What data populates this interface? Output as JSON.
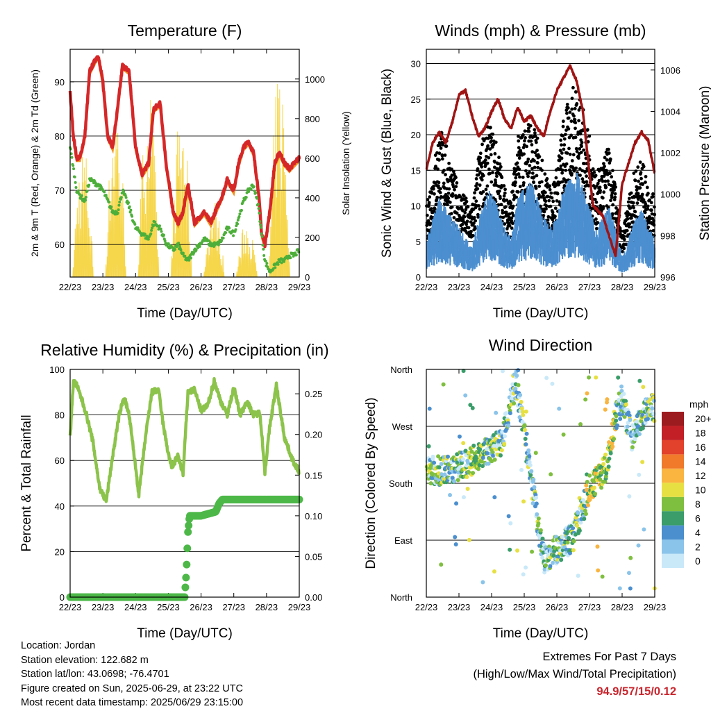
{
  "x_ticks": [
    "22/23",
    "23/23",
    "24/23",
    "25/23",
    "26/23",
    "27/23",
    "28/23",
    "29/23"
  ],
  "x_label": "Time (Day/UTC)",
  "colors": {
    "temp_red": "#d62728",
    "temp_orange": "#f39020",
    "dewpoint_green": "#4daf3a",
    "solar_yellow": "#f6d64a",
    "wind_blue": "#4c8fd0",
    "gust_black": "#000000",
    "pressure_maroon": "#a01414",
    "rh_green": "#8cc34b",
    "precip_green": "#4db848"
  },
  "chart_data": [
    {
      "id": "temperature",
      "type": "line",
      "title": "Temperature (F)",
      "xlabel": "Time (Day/UTC)",
      "ylabel": "2m & 9m T (Red, Orange) & 2m Td (Green)",
      "y2label": "Solar Insolation (Yellow)",
      "ylim": [
        54,
        96
      ],
      "yticks": [
        60,
        70,
        80,
        90
      ],
      "y2lim": [
        0,
        1150
      ],
      "y2ticks": [
        0,
        200,
        400,
        600,
        800,
        1000
      ],
      "x_days": [
        0,
        0.1,
        0.2,
        0.3,
        0.45,
        0.6,
        0.85,
        1.0,
        1.15,
        1.3,
        1.45,
        1.6,
        1.8,
        2.0,
        2.2,
        2.4,
        2.55,
        2.75,
        2.95,
        3.15,
        3.3,
        3.45,
        3.6,
        3.8,
        3.95,
        4.1,
        4.3,
        4.5,
        4.65,
        4.8,
        5.0,
        5.15,
        5.3,
        5.45,
        5.6,
        5.75,
        5.85,
        5.95,
        6.1,
        6.25,
        6.4,
        6.55,
        6.7,
        6.85,
        7.0
      ],
      "series": [
        {
          "name": "2m T",
          "values": [
            88,
            80,
            76,
            76,
            80,
            92,
            95,
            90,
            80,
            78,
            85,
            93,
            92,
            78,
            73,
            75,
            85,
            86,
            74,
            66,
            64,
            66,
            71,
            64,
            65,
            66,
            64,
            67,
            69,
            72,
            70,
            75,
            78,
            79,
            77,
            70,
            62,
            60,
            66,
            75,
            77,
            75,
            74,
            75,
            76
          ]
        },
        {
          "name": "Td",
          "values": [
            78,
            74,
            70,
            69,
            68,
            72,
            71,
            70,
            68,
            66,
            66,
            70,
            67,
            63,
            62,
            61,
            64,
            63,
            60,
            59,
            60,
            58,
            57,
            59,
            60,
            61,
            60,
            60,
            61,
            63,
            62,
            65,
            68,
            70,
            71,
            67,
            62,
            57,
            55,
            56,
            57,
            57,
            58,
            58,
            59
          ]
        }
      ],
      "solar": [
        {
          "day": 0,
          "peak": 700
        },
        {
          "day": 1,
          "peak": 950
        },
        {
          "day": 2,
          "peak": 1000
        },
        {
          "day": 3,
          "peak": 900
        },
        {
          "day": 4,
          "peak": 400
        },
        {
          "day": 5,
          "peak": 300
        },
        {
          "day": 6,
          "peak": 1100
        }
      ]
    },
    {
      "id": "winds",
      "type": "scatter+line",
      "title": "Winds (mph) & Pressure (mb)",
      "xlabel": "Time (Day/UTC)",
      "ylabel": "Sonic Wind & Gust (Blue, Black)",
      "y2label": "Station Pressure (Maroon)",
      "ylim": [
        0,
        32
      ],
      "yticks": [
        0,
        5,
        10,
        15,
        20,
        25,
        30
      ],
      "y2lim": [
        996,
        1007
      ],
      "y2ticks": [
        996,
        998,
        1000,
        1002,
        1004,
        1006
      ],
      "pressure": {
        "x_days": [
          0,
          0.2,
          0.4,
          0.6,
          0.8,
          1.0,
          1.2,
          1.4,
          1.6,
          1.8,
          2.0,
          2.2,
          2.4,
          2.6,
          2.8,
          3.0,
          3.2,
          3.4,
          3.6,
          3.8,
          4.0,
          4.2,
          4.4,
          4.6,
          4.8,
          5.0,
          5.1,
          5.25,
          5.4,
          5.6,
          5.8,
          6.0,
          6.2,
          6.4,
          6.6,
          6.8,
          7.0
        ],
        "values": [
          1001.2,
          1002.5,
          1003.0,
          1002.5,
          1003.5,
          1004.8,
          1005.0,
          1003.8,
          1002.8,
          1003.2,
          1004.0,
          1004.6,
          1003.6,
          1003.2,
          1004.2,
          1003.5,
          1003.8,
          1003.2,
          1002.8,
          1004.0,
          1005.0,
          1005.6,
          1006.2,
          1005.5,
          1004.0,
          1001.0,
          999.5,
          999.2,
          999.0,
          998.0,
          997.0,
          1000.5,
          1001.5,
          1002.5,
          1003.0,
          1002.6,
          1001.0
        ]
      },
      "wind_mean": [
        4,
        6,
        8,
        7,
        6,
        5,
        4,
        3,
        6,
        8,
        9,
        7,
        5,
        4,
        8,
        9,
        10,
        8,
        6,
        5,
        6,
        9,
        10,
        11,
        9,
        7,
        5,
        6,
        7,
        5,
        2,
        4,
        6,
        7,
        5,
        4
      ],
      "gust_mean": [
        7,
        11,
        15,
        14,
        11,
        9,
        8,
        7,
        12,
        15,
        15,
        13,
        9,
        8,
        14,
        15,
        16,
        14,
        11,
        9,
        11,
        16,
        18,
        20,
        17,
        14,
        10,
        12,
        13,
        9,
        4,
        8,
        11,
        12,
        9,
        8
      ]
    },
    {
      "id": "humidity",
      "type": "line",
      "title": "Relative Humidity (%) & Precipitation (in)",
      "xlabel": "Time (Day/UTC)",
      "ylabel": "Percent & Total Rainfall",
      "ylim": [
        0,
        100
      ],
      "yticks": [
        0,
        20,
        40,
        60,
        80,
        100
      ],
      "y2lim": [
        0,
        0.28
      ],
      "y2ticks": [
        "0.00",
        "0.05",
        "0.10",
        "0.15",
        "0.20",
        "0.25"
      ],
      "rh": {
        "x_days": [
          0,
          0.1,
          0.2,
          0.35,
          0.5,
          0.7,
          0.9,
          1.1,
          1.3,
          1.5,
          1.65,
          1.8,
          1.95,
          2.1,
          2.3,
          2.5,
          2.7,
          2.85,
          3.0,
          3.1,
          3.3,
          3.45,
          3.6,
          3.8,
          4.0,
          4.2,
          4.4,
          4.6,
          4.8,
          5.0,
          5.2,
          5.4,
          5.6,
          5.8,
          5.95,
          6.1,
          6.3,
          6.55,
          6.8,
          7.0
        ],
        "values": [
          70,
          95,
          93,
          87,
          80,
          68,
          48,
          42,
          62,
          80,
          88,
          80,
          63,
          45,
          70,
          90,
          91,
          75,
          63,
          57,
          62,
          54,
          90,
          91,
          82,
          84,
          95,
          86,
          80,
          92,
          80,
          86,
          80,
          81,
          55,
          75,
          93,
          70,
          60,
          55
        ]
      },
      "precip": {
        "x_days": [
          0,
          3.5,
          3.55,
          3.6,
          3.65,
          3.8,
          4.0,
          4.45,
          4.55,
          4.65,
          5.0,
          7.0
        ],
        "values": [
          0,
          0,
          0.03,
          0.08,
          0.1,
          0.1,
          0.1,
          0.105,
          0.115,
          0.12,
          0.12,
          0.12
        ]
      }
    },
    {
      "id": "wind_direction",
      "type": "scatter",
      "title": "Wind Direction",
      "xlabel": "Time (Day/UTC)",
      "ylabel": "Direction (Colored By Speed)",
      "ylim": [
        0,
        360
      ],
      "ytick_labels": [
        "North",
        "East",
        "South",
        "West",
        "North"
      ],
      "direction_track": [
        {
          "x": 0.5,
          "y": 200
        },
        {
          "x": 1.2,
          "y": 210
        },
        {
          "x": 1.7,
          "y": 225
        },
        {
          "x": 2.3,
          "y": 245
        },
        {
          "x": 2.75,
          "y": 340
        },
        {
          "x": 3.6,
          "y": 60
        },
        {
          "x": 4.0,
          "y": 75
        },
        {
          "x": 4.5,
          "y": 95
        },
        {
          "x": 5.0,
          "y": 170
        },
        {
          "x": 5.5,
          "y": 205
        },
        {
          "x": 5.8,
          "y": 285
        },
        {
          "x": 6.0,
          "y": 315
        },
        {
          "x": 6.3,
          "y": 250
        },
        {
          "x": 6.8,
          "y": 300
        }
      ],
      "colorbar": {
        "unit": "mph",
        "labels": [
          "0",
          "2",
          "4",
          "6",
          "8",
          "10",
          "12",
          "14",
          "16",
          "18",
          "20+"
        ],
        "colors": [
          "#c9e9f9",
          "#8bc4ea",
          "#4b8fcf",
          "#3a9d6a",
          "#7fbf3f",
          "#e7e042",
          "#f9b540",
          "#f07a2a",
          "#e2422b",
          "#c31f26",
          "#9c1b1e"
        ]
      }
    }
  ],
  "info": {
    "location": "Location: Jordan",
    "elevation": "Station elevation: 122.682 m",
    "latlon": "Station lat/lon: 43.0698; -76.4701",
    "created": "Figure created on Sun, 2025-06-29, at 23:22 UTC",
    "timestamp": "Most recent data timestamp: 2025/06/29 23:15:00"
  },
  "extremes": {
    "line1": "Extremes For Past 7 Days",
    "line2": "(High/Low/Max Wind/Total Precipitation)",
    "values": "94.9/57/15/0.12"
  }
}
